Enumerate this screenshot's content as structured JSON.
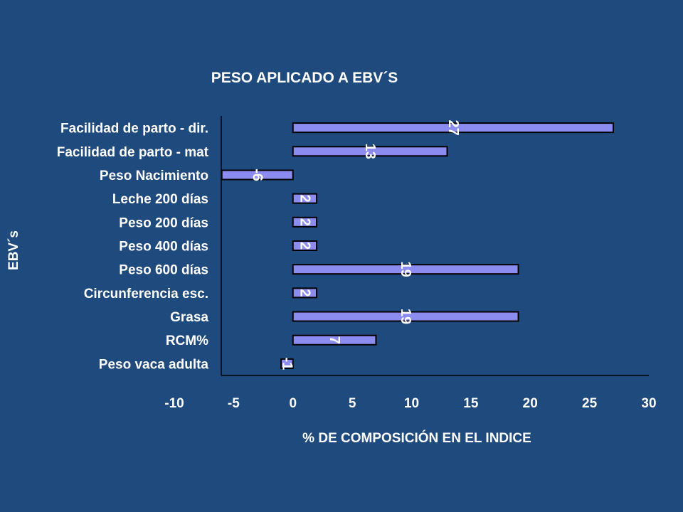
{
  "chart_data": {
    "type": "bar",
    "orientation": "horizontal",
    "title": "PESO APLICADO A EBV´S",
    "xlabel": "% DE COMPOSICIÓN EN EL INDICE",
    "ylabel": "EBV´s",
    "categories": [
      "Facilidad de parto - dir.",
      "Facilidad de parto - mat",
      "Peso Nacimiento",
      "Leche 200 días",
      "Peso 200 días",
      "Peso 400 días",
      "Peso 600 días",
      "Circunferencia esc.",
      "Grasa",
      "RCM%",
      "Peso vaca adulta"
    ],
    "values": [
      27,
      13,
      -6,
      2,
      2,
      2,
      19,
      2,
      19,
      7,
      -1
    ],
    "data_labels": [
      "27",
      "13",
      "-6",
      "2",
      "2",
      "2",
      "19",
      "2",
      "19",
      "7",
      "-1"
    ],
    "xlim": [
      -10,
      30
    ],
    "xticks": [
      "-10",
      "-5",
      "0",
      "5",
      "10",
      "15",
      "20",
      "25",
      "30"
    ],
    "grid": false,
    "legend": "none",
    "colors": {
      "background": "#1f4a7e",
      "bar_fill": "#8c8cf0",
      "bar_stroke": "#000000",
      "text": "#ffffff",
      "axis": "#000000"
    }
  }
}
